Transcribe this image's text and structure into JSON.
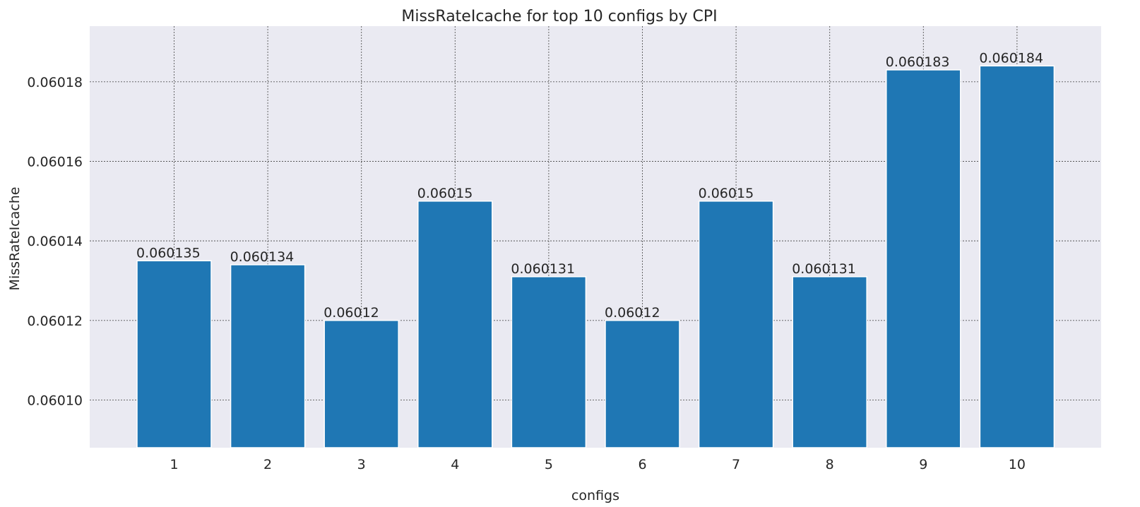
{
  "chart_data": {
    "type": "bar",
    "title": "MissRateIcache for top 10 configs by CPI",
    "xlabel": "configs",
    "ylabel": "MissRateIcache",
    "categories": [
      "1",
      "2",
      "3",
      "4",
      "5",
      "6",
      "7",
      "8",
      "9",
      "10"
    ],
    "values": [
      0.060135,
      0.060134,
      0.06012,
      0.06015,
      0.060131,
      0.06012,
      0.06015,
      0.060131,
      0.060183,
      0.060184
    ],
    "data_labels": [
      "0.060135",
      "0.060134",
      "0.06012",
      "0.06015",
      "0.060131",
      "0.06012",
      "0.06015",
      "0.060131",
      "0.060183",
      "0.060184"
    ],
    "ylim": [
      0.060088,
      0.060194
    ],
    "yticks": [
      0.0601,
      0.06012,
      0.06014,
      0.06016,
      0.06018
    ],
    "ytick_labels": [
      "0.06010",
      "0.06012",
      "0.06014",
      "0.06016",
      "0.06018"
    ],
    "grid": true,
    "colors": {
      "bar": "#1f77b4",
      "plot_background": "#eaeaf2",
      "grid": "#555555",
      "text": "#262626"
    }
  }
}
